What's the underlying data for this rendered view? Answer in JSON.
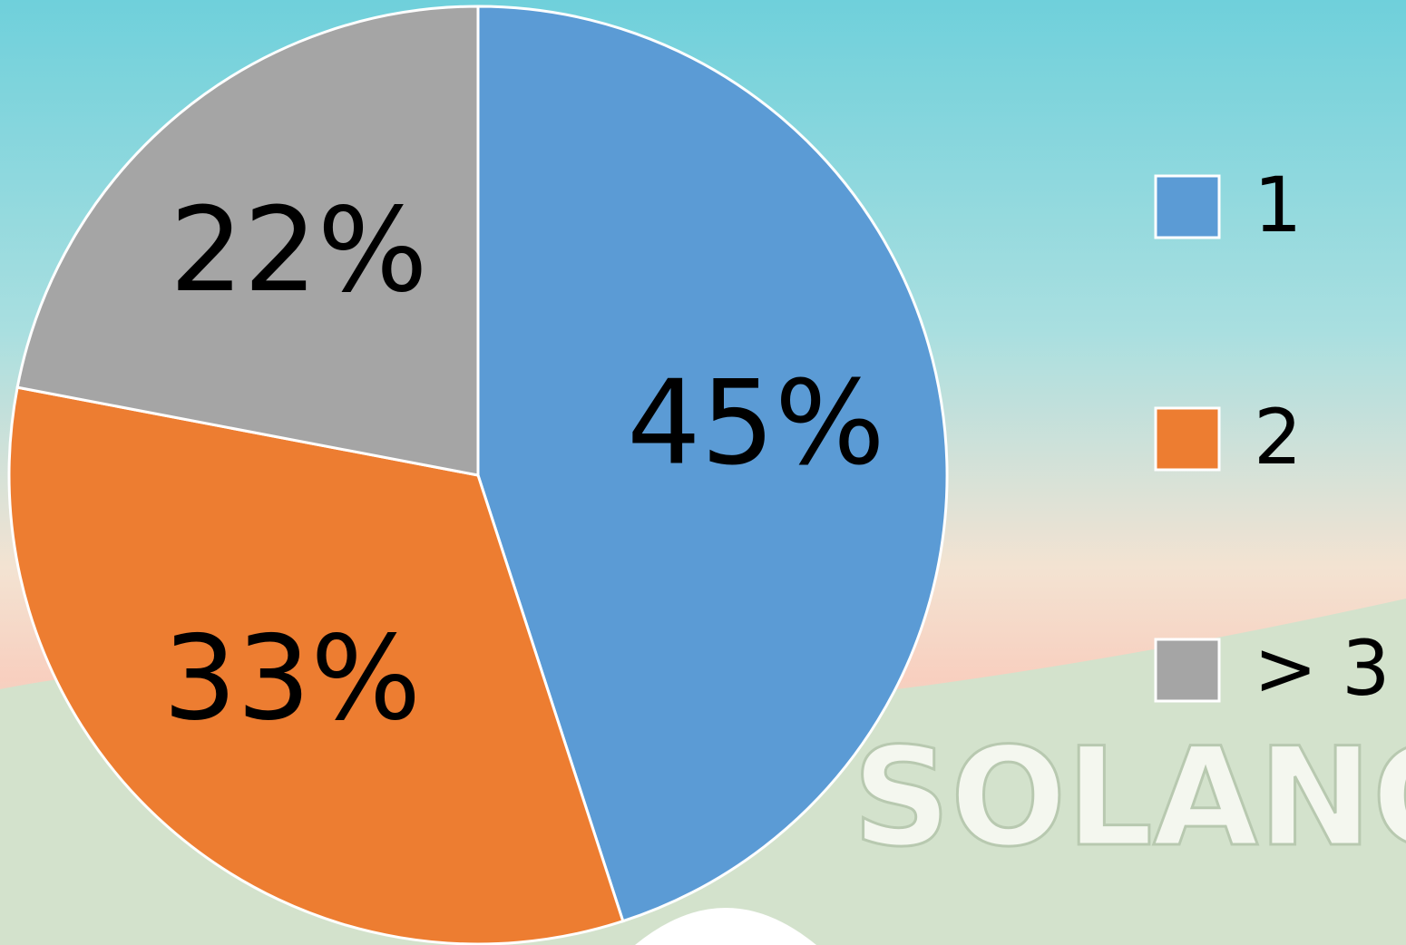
{
  "chart_data": {
    "type": "pie",
    "categories": [
      "1",
      "2",
      "> 3"
    ],
    "values": [
      45,
      33,
      22
    ],
    "value_labels": [
      "45%",
      "33%",
      "22%"
    ],
    "colors": [
      "#5b9bd5",
      "#ed7d31",
      "#a5a5a5"
    ],
    "legend": "right",
    "background_text": "SOLANO"
  }
}
